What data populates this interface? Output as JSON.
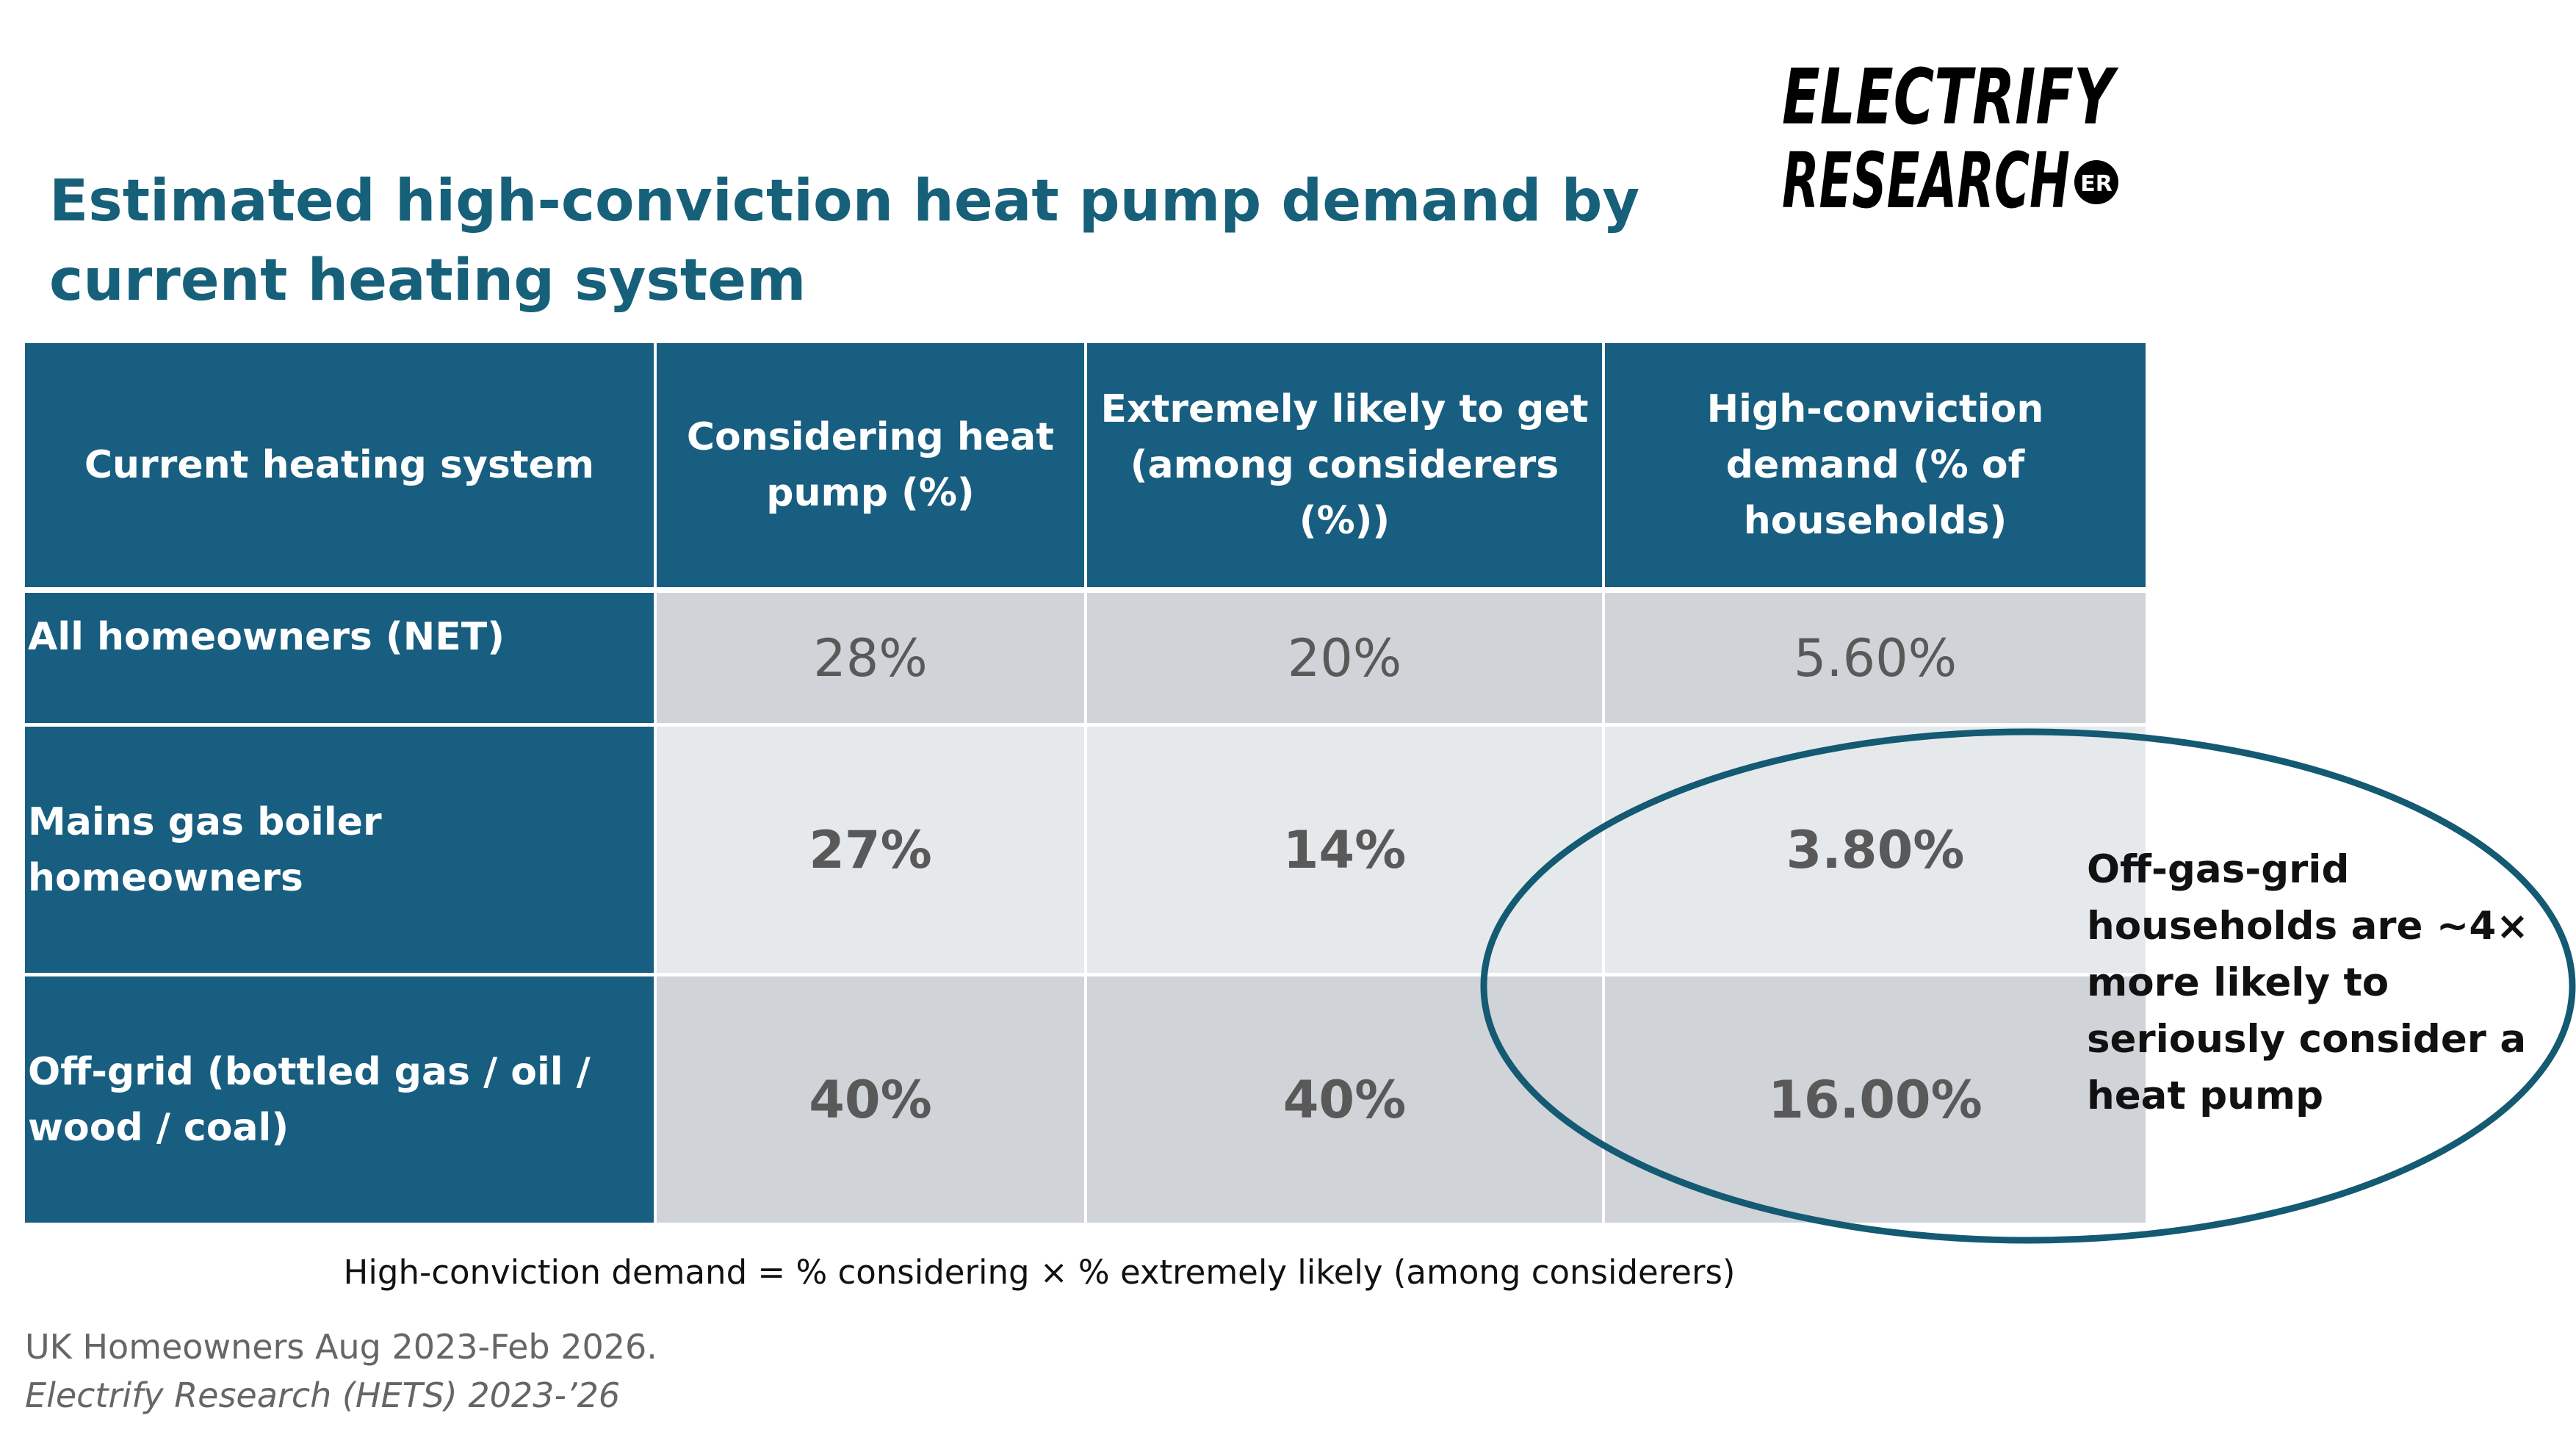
{
  "title": "Estimated high-conviction heat pump demand by current heating system",
  "logo": {
    "line1": "ELECTRIFY",
    "line2": "RESEARCH",
    "badge": "ER"
  },
  "table": {
    "header": [
      "Current heating system",
      "Considering heat pump (%)",
      "Extremely likely to get (among considerers (%))",
      "High-conviction demand (% of households)"
    ],
    "rows": [
      [
        "All homeowners (NET)",
        "28%",
        "20%",
        "5.60%"
      ],
      [
        "Mains gas boiler homeowners",
        "27%",
        "14%",
        "3.80%"
      ],
      [
        "Off-grid (bottled gas / oil / wood / coal)",
        "40%",
        "40%",
        "16.00%"
      ]
    ]
  },
  "callout": [
    "Off-gas-grid",
    "households are ~4×",
    "more likely to",
    "seriously consider a",
    "heat pump"
  ],
  "formula": "High-conviction demand = % considering × % extremely likely (among considerers)",
  "source": {
    "line1": "UK Homeowners Aug 2023-Feb 2026.",
    "line2": "Electrify Research (HETS)  2023-’26"
  }
}
